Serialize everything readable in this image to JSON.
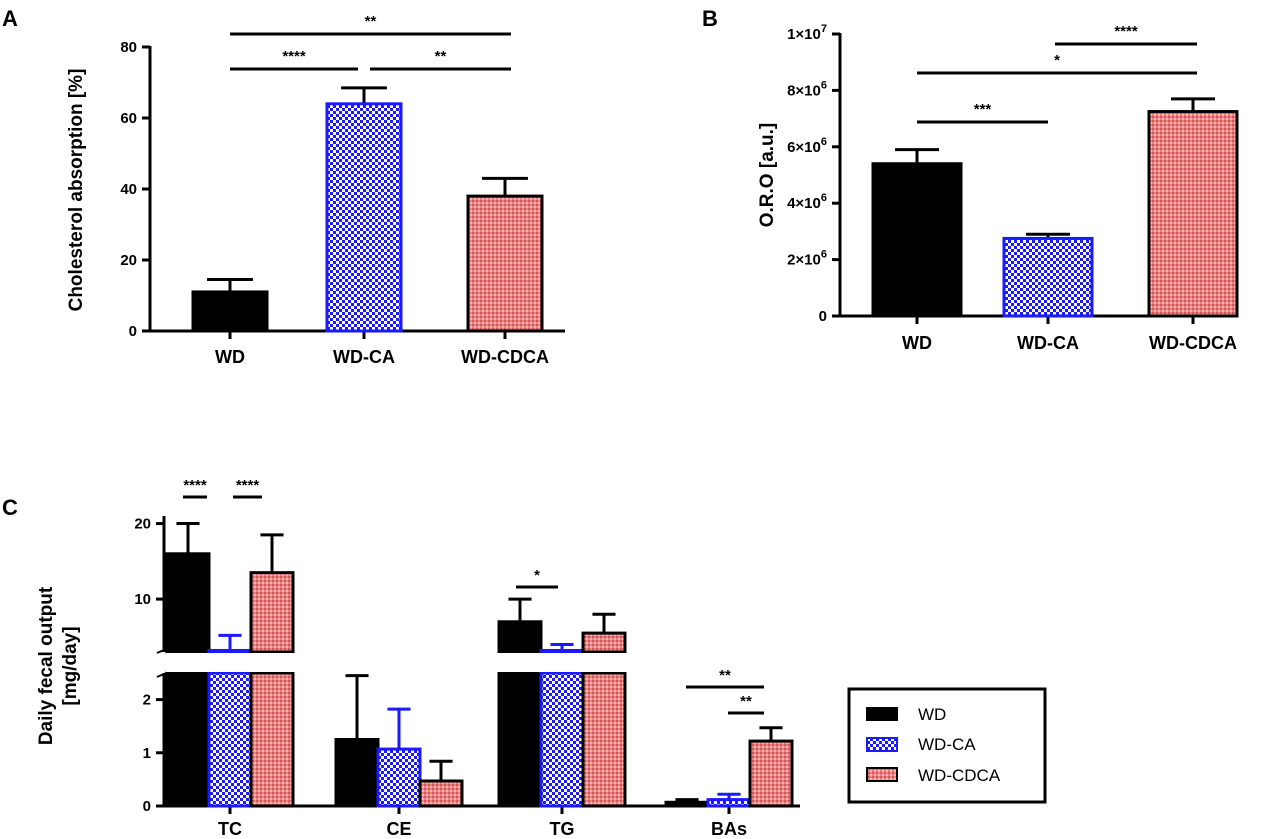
{
  "colors": {
    "wd": "#000000",
    "wd_ca": "#1a1aff",
    "wd_cdca": "#f08080",
    "wd_cdca_dark": "#c85a5a"
  },
  "legend": {
    "items": [
      "WD",
      "WD-CA",
      "WD-CDCA"
    ]
  },
  "chart_data": [
    {
      "panel": "A",
      "type": "bar",
      "title": "",
      "xlabel": "",
      "ylabel": "Cholesterol absorption [%]",
      "categories": [
        "WD",
        "WD-CA",
        "WD-CDCA"
      ],
      "values": [
        11,
        64,
        38
      ],
      "errors": [
        3.5,
        4.5,
        5
      ],
      "ylim": [
        0,
        80
      ],
      "yticks": [
        0,
        20,
        40,
        60,
        80
      ],
      "ytick_labels": [
        "0",
        "20",
        "40",
        "60",
        "80"
      ],
      "significance": [
        {
          "from": 0,
          "to": 2,
          "label": "**",
          "level": 2
        },
        {
          "from": 0,
          "to": 1,
          "label": "****",
          "level": 1
        },
        {
          "from": 1,
          "to": 2,
          "label": "**",
          "level": 1
        }
      ]
    },
    {
      "panel": "B",
      "type": "bar",
      "title": "",
      "xlabel": "",
      "ylabel": "O.R.O [a.u.]",
      "categories": [
        "WD",
        "WD-CA",
        "WD-CDCA"
      ],
      "values": [
        5400000,
        2750000,
        7250000
      ],
      "errors": [
        500000,
        150000,
        450000
      ],
      "ylim": [
        0,
        10000000
      ],
      "yticks": [
        0,
        2000000,
        4000000,
        6000000,
        8000000,
        10000000
      ],
      "ytick_labels": [
        {
          "base": "0",
          "exp": ""
        },
        {
          "base": "2×10",
          "exp": "6"
        },
        {
          "base": "4×10",
          "exp": "6"
        },
        {
          "base": "6×10",
          "exp": "6"
        },
        {
          "base": "8×10",
          "exp": "6"
        },
        {
          "base": "1×10",
          "exp": "7"
        }
      ],
      "significance": [
        {
          "from": 1,
          "to": 2,
          "label": "****",
          "level": 3
        },
        {
          "from": 0,
          "to": 2,
          "label": "*",
          "level": 2
        },
        {
          "from": 0,
          "to": 1,
          "label": "***",
          "level": 1
        }
      ]
    },
    {
      "panel": "C",
      "type": "bar",
      "title": "",
      "xlabel": "",
      "ylabel": [
        "Daily fecal output",
        "[mg/day]"
      ],
      "categories": [
        "TC",
        "CE",
        "TG",
        "BAs"
      ],
      "series": [
        {
          "name": "WD",
          "values": [
            16,
            1.25,
            7,
            0.07
          ],
          "errors": [
            4,
            1.2,
            3,
            0.05
          ]
        },
        {
          "name": "WD-CA",
          "values": [
            3.2,
            1.07,
            3.2,
            0.12
          ],
          "errors": [
            2,
            0.75,
            0.8,
            0.1
          ]
        },
        {
          "name": "WD-CDCA",
          "values": [
            13.5,
            0.47,
            5.5,
            1.22
          ],
          "errors": [
            5,
            0.37,
            2.5,
            0.25
          ]
        }
      ],
      "y_axis_break": {
        "lower_ylim": [
          0,
          2.5
        ],
        "upper_ylim": [
          3,
          21
        ]
      },
      "yticks_lower": [
        0,
        1,
        2
      ],
      "yticks_upper": [
        10,
        20
      ],
      "significance": [
        {
          "group": 0,
          "from": 0,
          "to": 1,
          "label": "****"
        },
        {
          "group": 0,
          "from": 1,
          "to": 2,
          "label": "****"
        },
        {
          "group": 2,
          "from": 0,
          "to": 1,
          "label": "*"
        },
        {
          "group": 3,
          "from": 0,
          "to": 2,
          "label": "**"
        },
        {
          "group": 3,
          "from": 1,
          "to": 2,
          "label": "**"
        }
      ]
    }
  ]
}
